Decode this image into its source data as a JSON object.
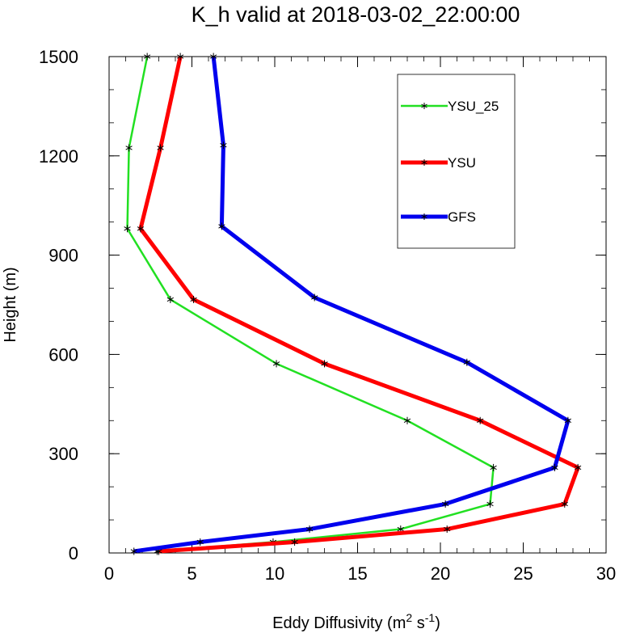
{
  "chart_data": {
    "type": "line",
    "title": "K_h valid at 2018-03-02_22:00:00",
    "xlabel_main": "Eddy Diffusivity (m",
    "xlabel_sup1": "2",
    "xlabel_mid": " s",
    "xlabel_sup2": "-1",
    "xlabel_end": ")",
    "ylabel": "Height (m)",
    "xlim": [
      0,
      30
    ],
    "ylim": [
      0,
      1500
    ],
    "xticks": [
      0,
      5,
      10,
      15,
      20,
      25,
      30
    ],
    "yticks": [
      0,
      300,
      600,
      900,
      1200,
      1500
    ],
    "x_minor_step": 1,
    "y_minor_step": 100,
    "grid": false,
    "legend_position": "top-right",
    "marker": "asterisk",
    "series": [
      {
        "name": "YSU_25",
        "color": "#22e022",
        "line_width": 2.5,
        "points": [
          {
            "x": 2.9,
            "y": 5
          },
          {
            "x": 9.9,
            "y": 33
          },
          {
            "x": 17.6,
            "y": 72
          },
          {
            "x": 23.0,
            "y": 148
          },
          {
            "x": 23.2,
            "y": 258
          },
          {
            "x": 18.0,
            "y": 400
          },
          {
            "x": 10.1,
            "y": 572
          },
          {
            "x": 3.7,
            "y": 766
          },
          {
            "x": 1.1,
            "y": 980
          },
          {
            "x": 1.2,
            "y": 1224
          },
          {
            "x": 2.3,
            "y": 1500
          }
        ]
      },
      {
        "name": "YSU",
        "color": "#ff0000",
        "line_width": 5,
        "points": [
          {
            "x": 3.0,
            "y": 5
          },
          {
            "x": 11.2,
            "y": 33
          },
          {
            "x": 20.4,
            "y": 72
          },
          {
            "x": 27.5,
            "y": 148
          },
          {
            "x": 28.3,
            "y": 258
          },
          {
            "x": 22.4,
            "y": 400
          },
          {
            "x": 13.0,
            "y": 572
          },
          {
            "x": 5.1,
            "y": 766
          },
          {
            "x": 1.9,
            "y": 980
          },
          {
            "x": 3.1,
            "y": 1224
          },
          {
            "x": 4.3,
            "y": 1500
          }
        ]
      },
      {
        "name": "GFS",
        "color": "#0000ee",
        "line_width": 5,
        "points": [
          {
            "x": 1.5,
            "y": 5
          },
          {
            "x": 5.5,
            "y": 33
          },
          {
            "x": 12.1,
            "y": 72
          },
          {
            "x": 20.3,
            "y": 148
          },
          {
            "x": 26.9,
            "y": 258
          },
          {
            "x": 27.7,
            "y": 400
          },
          {
            "x": 21.6,
            "y": 576
          },
          {
            "x": 12.4,
            "y": 772
          },
          {
            "x": 6.8,
            "y": 987
          },
          {
            "x": 6.9,
            "y": 1232
          },
          {
            "x": 6.3,
            "y": 1500
          }
        ]
      }
    ]
  }
}
